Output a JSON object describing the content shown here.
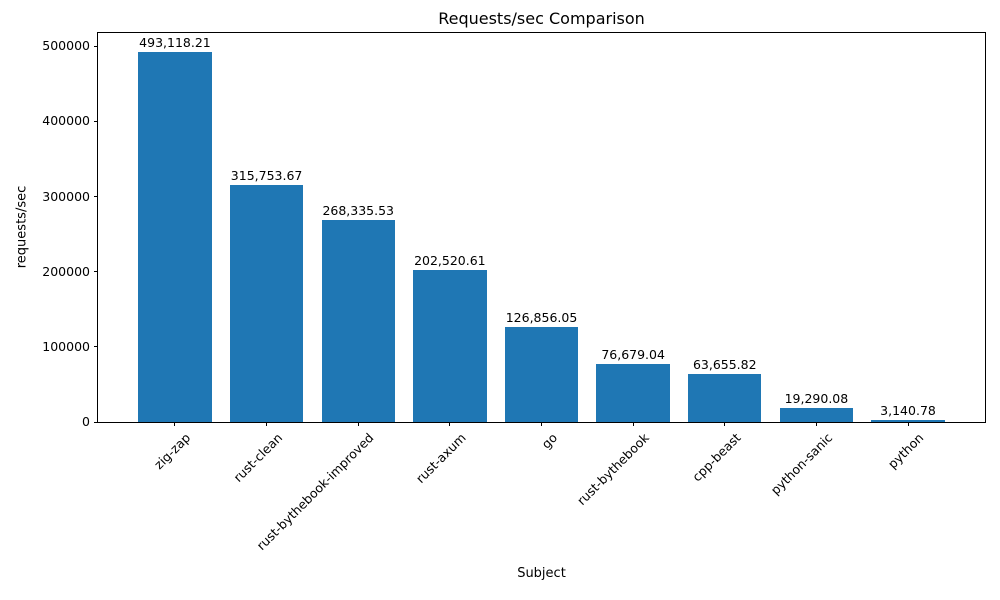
{
  "chart_data": {
    "type": "bar",
    "title": "Requests/sec Comparison",
    "xlabel": "Subject",
    "ylabel": "requests/sec",
    "categories": [
      "zig-zap",
      "rust-clean",
      "rust-bythebook-improved",
      "rust-axum",
      "go",
      "rust-bythebook",
      "cpp-beast",
      "python-sanic",
      "python"
    ],
    "values": [
      493118.21,
      315753.67,
      268335.53,
      202520.61,
      126856.05,
      76679.04,
      63655.82,
      19290.08,
      3140.78
    ],
    "bar_value_labels": [
      "493,118.21",
      "315,753.67",
      "268,335.53",
      "202,520.61",
      "126,856.05",
      "76,679.04",
      "63,655.82",
      "19,290.08",
      "3,140.78"
    ],
    "ylim": [
      0,
      517774
    ],
    "yticks": [
      0,
      100000,
      200000,
      300000,
      400000,
      500000
    ],
    "ytick_labels": [
      "0",
      "100000",
      "200000",
      "300000",
      "400000",
      "500000"
    ],
    "xtick_rotation_deg": 45,
    "bar_color": "#1f77b4",
    "axis_color": "#000000",
    "grid": false,
    "legend": null
  }
}
